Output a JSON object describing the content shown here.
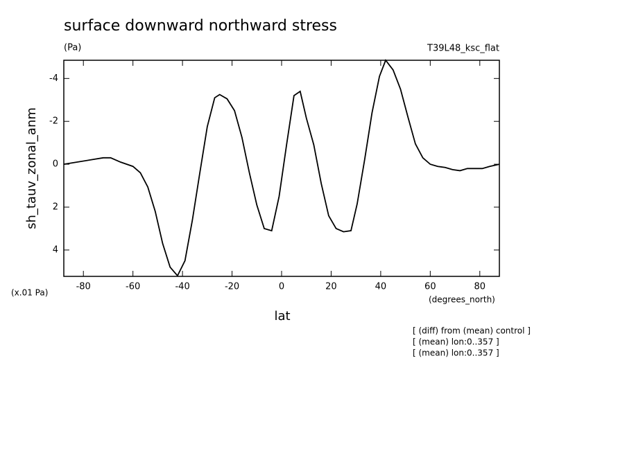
{
  "chart_data": {
    "type": "line",
    "title": "surface downward northward stress",
    "subtitle": "(Pa)",
    "run_label": "T39L48_ksc_flat",
    "y_label": "sh_tauv_zonal_anm",
    "y_unit": "(x.01 Pa)",
    "x_unit": "(degrees_north)",
    "x_label": "lat",
    "notes": [
      "[ (diff) from (mean) control ]",
      "[ (mean) lon:0..357 ]",
      "[ (mean) lon:0..357 ]"
    ],
    "x": [
      -87.9,
      -72,
      -69,
      -65,
      -60,
      -57,
      -54,
      -51,
      -48,
      -45,
      -42,
      -39,
      -36,
      -33,
      -30,
      -27,
      -25,
      -22,
      -19,
      -16,
      -13,
      -10,
      -7,
      -4,
      -1,
      2,
      5,
      7.5,
      10,
      13,
      16,
      19,
      22,
      25,
      28,
      30.5,
      33.5,
      36.5,
      39.5,
      42,
      45,
      48,
      51,
      54,
      57,
      60,
      63,
      66,
      69,
      72,
      75,
      78,
      81,
      84,
      87.9
    ],
    "series": [
      {
        "color": "#000000",
        "values": [
          0,
          -0.3,
          -0.3,
          -0.1,
          0.1,
          0.4,
          1.06,
          2.2,
          3.7,
          4.8,
          5.2,
          4.5,
          2.6,
          0.4,
          -1.75,
          -3.1,
          -3.25,
          -3.05,
          -2.5,
          -1.25,
          0.4,
          1.9,
          3.0,
          3.1,
          1.5,
          -0.9,
          -3.2,
          -3.4,
          -2.15,
          -0.9,
          0.9,
          2.4,
          3.0,
          3.15,
          3.1,
          1.85,
          -0.2,
          -2.4,
          -4.1,
          -4.85,
          -4.4,
          -3.5,
          -2.2,
          -0.95,
          -0.3,
          0.0,
          0.1,
          0.15,
          0.25,
          0.3,
          0.2,
          0.2,
          0.2,
          0.1,
          0
        ]
      }
    ],
    "xlim": [
      -87.9,
      87.9
    ],
    "ylim": [
      -4.85,
      5.23
    ],
    "y_inverted": true,
    "xticks": [
      -80,
      -60,
      -40,
      -20,
      0,
      20,
      40,
      60,
      80
    ],
    "yticks": [
      -4,
      -2,
      0,
      2,
      4
    ]
  }
}
